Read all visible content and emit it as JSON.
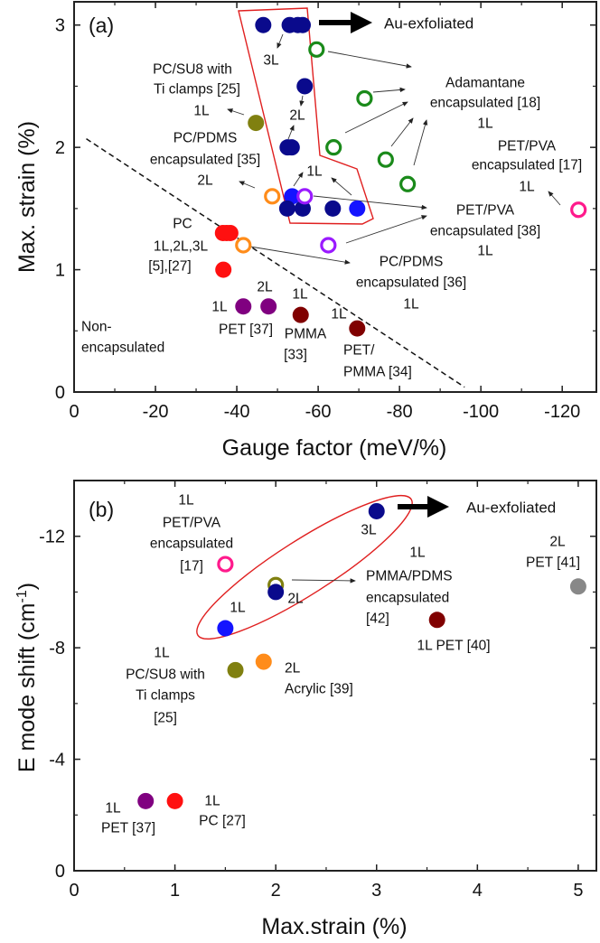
{
  "chart_data": [
    {
      "panel": "a",
      "type": "scatter",
      "title": "(a)",
      "xlabel": "Gauge factor (meV/%)",
      "ylabel": "Max. strain (%)",
      "xlim": [
        0,
        -128.4
      ],
      "ylim": [
        0,
        3.19
      ],
      "xticks": [
        0,
        -20,
        -40,
        -60,
        -80,
        -100,
        -120
      ],
      "xtick_labels": [
        "0",
        "-20",
        "-40",
        "-60",
        "-80",
        "-100",
        "-120"
      ],
      "xminor_step": -10,
      "yticks": [
        0,
        1,
        2,
        3
      ],
      "ytick_labels": [
        "0",
        "1",
        "2",
        "3"
      ],
      "yminor_step": 0.5,
      "grid": false,
      "boundary_line": {
        "style": "dashed",
        "from": [
          -3,
          2.07
        ],
        "to": [
          -96,
          0.04
        ]
      },
      "series": [
        {
          "name": "Au-exfoliated 1L",
          "color": "#1414ff",
          "filled": true,
          "points": [
            [
              -53.6,
              1.6
            ],
            [
              -69.6,
              1.5
            ]
          ]
        },
        {
          "name": "Au-exfoliated 2L/3L",
          "color": "#0a0a8c",
          "filled": true,
          "points": [
            [
              -46.5,
              3.0
            ],
            [
              -53,
              3.0
            ],
            [
              -55,
              3.0
            ],
            [
              -56.2,
              3.0
            ],
            [
              -56.7,
              2.5
            ],
            [
              -52.5,
              2.0
            ],
            [
              -53.5,
              2.0
            ],
            [
              -52.4,
              1.5
            ],
            [
              -56.2,
              1.5
            ],
            [
              -63.6,
              1.5
            ]
          ]
        },
        {
          "name": "Adamantane encapsulated [18] 1L",
          "color": "#1a8a1a",
          "filled": false,
          "points": [
            [
              -59.6,
              2.8
            ],
            [
              -71.4,
              2.4
            ],
            [
              -63.8,
              2.0
            ],
            [
              -76.6,
              1.9
            ],
            [
              -82,
              1.7
            ]
          ]
        },
        {
          "name": "PC/PDMS encapsulated [35] 2L",
          "color": "#ff8c1a",
          "filled": false,
          "points": [
            [
              -48.7,
              1.6
            ]
          ]
        },
        {
          "name": "PC/PDMS encapsulated [36] 1L",
          "color": "#ff8c1a",
          "filled": false,
          "points": [
            [
              -41.6,
              1.2
            ]
          ]
        },
        {
          "name": "PET/PVA encapsulated [38] 1L",
          "color": "#9a1aff",
          "filled": false,
          "points": [
            [
              -56.7,
              1.6
            ],
            [
              -62.5,
              1.2
            ]
          ]
        },
        {
          "name": "PET/PVA encapsulated [17] 1L",
          "color": "#ff1a8c",
          "filled": false,
          "points": [
            [
              -124,
              1.49
            ]
          ]
        },
        {
          "name": "PC/SU8 with Ti clamps [25] 1L",
          "color": "#808010",
          "filled": true,
          "points": [
            [
              -44.7,
              2.2
            ]
          ]
        },
        {
          "name": "PC 1L,2L,3L [5],[27]",
          "color": "#ff1010",
          "filled": true,
          "points": [
            [
              -36.6,
              1.3
            ],
            [
              -37.5,
              1.3
            ],
            [
              -38.4,
              1.3
            ],
            [
              -36.7,
              1.0
            ]
          ]
        },
        {
          "name": "PET [37]",
          "color": "#800080",
          "filled": true,
          "points": [
            [
              -41.6,
              0.7
            ],
            [
              -47.8,
              0.7
            ]
          ]
        },
        {
          "name": "PMMA [33] 1L",
          "color": "#800000",
          "filled": true,
          "points": [
            [
              -55.7,
              0.63
            ]
          ]
        },
        {
          "name": "PET/PMMA [34] 1L",
          "color": "#800000",
          "filled": true,
          "points": [
            [
              -69.6,
              0.52
            ]
          ]
        }
      ]
    },
    {
      "panel": "b",
      "type": "scatter",
      "title": "(b)",
      "xlabel": "Max.strain (%)",
      "ylabel": "E mode shift (cm",
      "ylabel_sup": "-1",
      "ylabel_end": ")",
      "xlim": [
        0,
        5.18
      ],
      "ylim": [
        0,
        -14.0
      ],
      "xticks": [
        0,
        1,
        2,
        3,
        4,
        5
      ],
      "xtick_labels": [
        "0",
        "1",
        "2",
        "3",
        "4",
        "5"
      ],
      "xminor_step": 0.5,
      "yticks": [
        0,
        -4,
        -8,
        -12
      ],
      "ytick_labels": [
        "0",
        "-4",
        "-8",
        "-12"
      ],
      "yminor_step": -2,
      "grid": false,
      "series": [
        {
          "name": "PET/PVA encapsulated [17] 1L",
          "color": "#ff1a8c",
          "filled": false,
          "points": [
            [
              1.5,
              -11.0
            ]
          ]
        },
        {
          "name": "PMMA/PDMS encapsulated [42] 1L",
          "color": "#808010",
          "filled": false,
          "points": [
            [
              2.0,
              -10.25
            ]
          ]
        },
        {
          "name": "Au-exfoliated 2L/3L",
          "color": "#0a0a8c",
          "filled": true,
          "points": [
            [
              2.0,
              -10.0
            ],
            [
              3.0,
              -12.9
            ]
          ]
        },
        {
          "name": "Au-exfoliated 1L",
          "color": "#1414ff",
          "filled": true,
          "points": [
            [
              1.5,
              -8.7
            ]
          ]
        },
        {
          "name": "PC/SU8 with Ti clamps [25] 1L",
          "color": "#808010",
          "filled": true,
          "points": [
            [
              1.6,
              -7.2
            ]
          ]
        },
        {
          "name": "Acrylic [39] 2L",
          "color": "#ff8c1a",
          "filled": true,
          "points": [
            [
              1.88,
              -7.5
            ]
          ]
        },
        {
          "name": "PET [37] 1L",
          "color": "#800080",
          "filled": true,
          "points": [
            [
              0.71,
              -2.5
            ]
          ]
        },
        {
          "name": "PC [27] 1L",
          "color": "#ff1010",
          "filled": true,
          "points": [
            [
              1.0,
              -2.5
            ]
          ]
        },
        {
          "name": "PET [40] 1L",
          "color": "#800000",
          "filled": true,
          "points": [
            [
              3.6,
              -9.0
            ]
          ]
        },
        {
          "name": "PET [41] 2L",
          "color": "#888888",
          "filled": true,
          "points": [
            [
              5.0,
              -10.2
            ]
          ]
        }
      ]
    }
  ],
  "annotations_a": {
    "au": "Au-exfoliated",
    "l3": "3L",
    "l2a": "2L",
    "l1a": "1L",
    "su8": [
      "PC/SU8 with",
      "Ti clamps [25]",
      "1L"
    ],
    "pdms35": [
      "PC/PDMS",
      "encapsulated [35]",
      "2L"
    ],
    "pc": [
      "PC",
      "1L,2L,3L",
      "[5],[27]"
    ],
    "pet37": [
      "2L",
      "1L",
      "PET [37]"
    ],
    "pmma33": [
      "1L",
      "PMMA",
      "[33]"
    ],
    "nonenc": [
      "Non-",
      "encapsulated"
    ],
    "petpmma": [
      "1L",
      "PET/",
      "PMMA [34]"
    ],
    "adam": [
      "Adamantane",
      "encapsulated [18]",
      "1L"
    ],
    "pva17": [
      "PET/PVA",
      "encapsulated [17]",
      "1L"
    ],
    "pva38": [
      "PET/PVA",
      "encapsulated [38]",
      "1L"
    ],
    "pdms36": [
      "PC/PDMS",
      "encapsulated [36]",
      "1L"
    ]
  },
  "annotations_b": {
    "au": "Au-exfoliated",
    "l3": "3L",
    "l2": "2L",
    "l1": "1L",
    "pva17": [
      "1L",
      "PET/PVA",
      "encapsulated",
      "[17]"
    ],
    "su8": [
      "1L",
      "PC/SU8 with",
      "Ti clamps",
      "[25]"
    ],
    "acrylic": [
      "2L",
      "Acrylic [39]"
    ],
    "pet37": [
      "1L",
      "PET [37]"
    ],
    "pc27": [
      "1L",
      "PC [27]"
    ],
    "pmma42": [
      "1L",
      "PMMA/PDMS",
      "encapsulated",
      "[42]"
    ],
    "pet40": "1L PET [40]",
    "pet41": [
      "2L",
      "PET [41]"
    ]
  }
}
